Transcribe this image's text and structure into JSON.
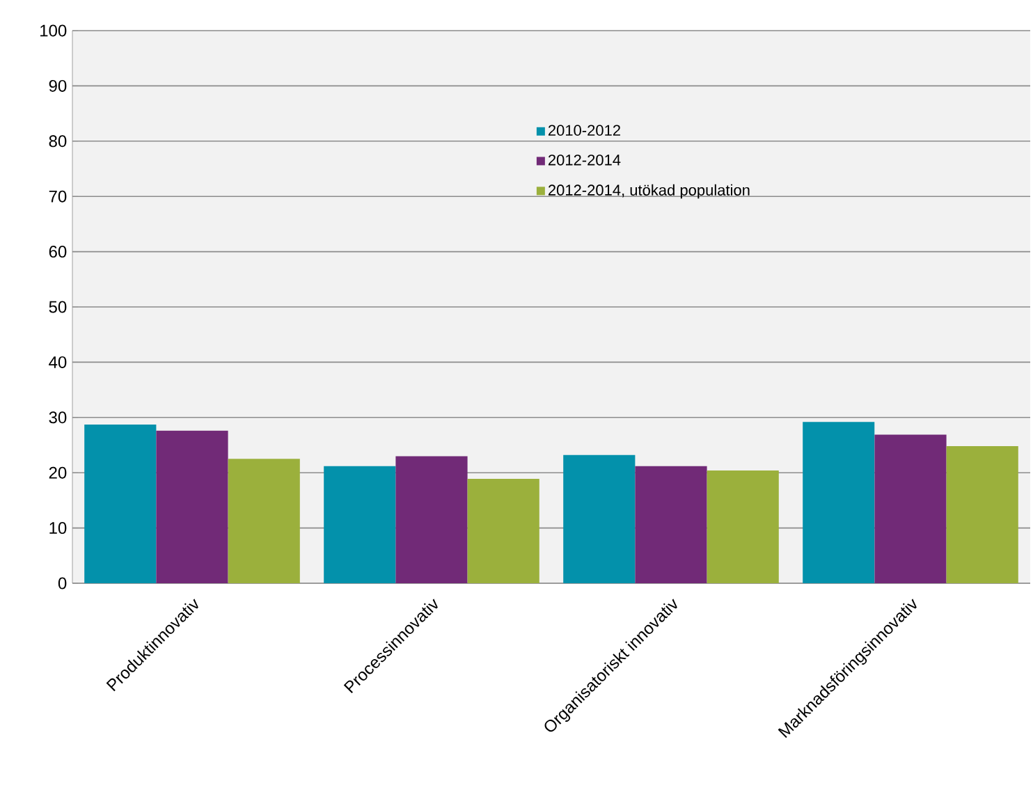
{
  "chart_data": {
    "type": "bar",
    "categories": [
      "Produktinnovativ",
      "Processinnovativ",
      "Organisatoriskt innovativ",
      "Marknadsföringsinnovativ"
    ],
    "series": [
      {
        "name": "2010-2012",
        "color": "#0391ab",
        "values": [
          28.7,
          21.2,
          23.2,
          29.2
        ]
      },
      {
        "name": "2012-2014",
        "color": "#712a77",
        "values": [
          27.6,
          23.0,
          21.2,
          26.9
        ]
      },
      {
        "name": "2012-2014, utökad population",
        "color": "#9bb03c",
        "values": [
          22.5,
          18.9,
          20.4,
          24.8
        ]
      }
    ],
    "ylim": [
      0,
      100
    ],
    "yticks": [
      0,
      10,
      20,
      30,
      40,
      50,
      60,
      70,
      80,
      90,
      100
    ],
    "grid": "y",
    "legend": "top"
  }
}
